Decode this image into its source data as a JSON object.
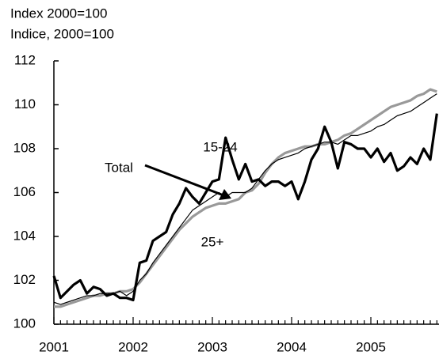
{
  "chart_data": {
    "type": "line",
    "subtitle": "Index 2000=100",
    "title": "Indice, 2000=100",
    "categories": [
      "2001",
      null,
      null,
      null,
      null,
      null,
      null,
      null,
      null,
      null,
      null,
      null,
      "2002",
      null,
      null,
      null,
      null,
      null,
      null,
      null,
      null,
      null,
      null,
      null,
      "2003",
      null,
      null,
      null,
      null,
      null,
      null,
      null,
      null,
      null,
      null,
      null,
      "2004",
      null,
      null,
      null,
      null,
      null,
      null,
      null,
      null,
      null,
      null,
      null,
      "2005",
      null,
      null,
      null,
      null,
      null,
      null,
      null,
      null,
      null,
      null
    ],
    "series": [
      {
        "name": "25+",
        "color": "#999999",
        "width": 3.2,
        "values": [
          100.8,
          100.8,
          100.9,
          101.0,
          101.1,
          101.2,
          101.3,
          101.3,
          101.4,
          101.4,
          101.5,
          101.5,
          101.6,
          101.9,
          102.3,
          102.7,
          103.1,
          103.5,
          103.9,
          104.3,
          104.6,
          104.9,
          105.1,
          105.3,
          105.4,
          105.5,
          105.5,
          105.6,
          105.7,
          106.0,
          106.1,
          106.4,
          106.9,
          107.3,
          107.6,
          107.8,
          107.9,
          108.0,
          108.1,
          108.1,
          108.2,
          108.2,
          108.3,
          108.4,
          108.6,
          108.7,
          108.9,
          109.1,
          109.3,
          109.5,
          109.7,
          109.9,
          110.0,
          110.1,
          110.2,
          110.4,
          110.5,
          110.7,
          110.6
        ]
      },
      {
        "name": "Total",
        "color": "#000000",
        "width": 1.2,
        "values": [
          101.0,
          100.9,
          101.0,
          101.1,
          101.2,
          101.3,
          101.3,
          101.4,
          101.4,
          101.4,
          101.5,
          101.3,
          101.5,
          102.0,
          102.3,
          102.8,
          103.2,
          103.6,
          104.0,
          104.4,
          104.8,
          105.2,
          105.4,
          105.6,
          105.8,
          106.0,
          105.8,
          106.0,
          106.0,
          106.0,
          106.2,
          106.6,
          107.0,
          107.3,
          107.5,
          107.6,
          107.7,
          107.8,
          108.0,
          108.1,
          108.2,
          108.3,
          108.3,
          108.2,
          108.4,
          108.6,
          108.6,
          108.7,
          108.8,
          109.0,
          109.1,
          109.3,
          109.5,
          109.6,
          109.7,
          109.9,
          110.1,
          110.3,
          110.5
        ]
      },
      {
        "name": "15-24",
        "color": "#000000",
        "width": 3.2,
        "values": [
          102.2,
          101.2,
          101.5,
          101.8,
          102.0,
          101.4,
          101.7,
          101.6,
          101.3,
          101.4,
          101.2,
          101.2,
          101.1,
          102.8,
          102.9,
          103.8,
          104.0,
          104.2,
          105.0,
          105.5,
          106.2,
          105.8,
          105.5,
          106.0,
          106.5,
          106.6,
          108.5,
          107.5,
          106.6,
          107.3,
          106.5,
          106.6,
          106.3,
          106.5,
          106.5,
          106.3,
          106.5,
          105.7,
          106.5,
          107.5,
          108.0,
          109.0,
          108.3,
          107.1,
          108.3,
          108.2,
          108.0,
          108.0,
          107.6,
          108.0,
          107.4,
          107.8,
          107.0,
          107.2,
          107.6,
          107.3,
          108.0,
          107.5,
          109.6
        ]
      }
    ],
    "ylim": [
      100,
      112
    ],
    "yticks": [
      100,
      102,
      104,
      106,
      108,
      110,
      112
    ]
  }
}
